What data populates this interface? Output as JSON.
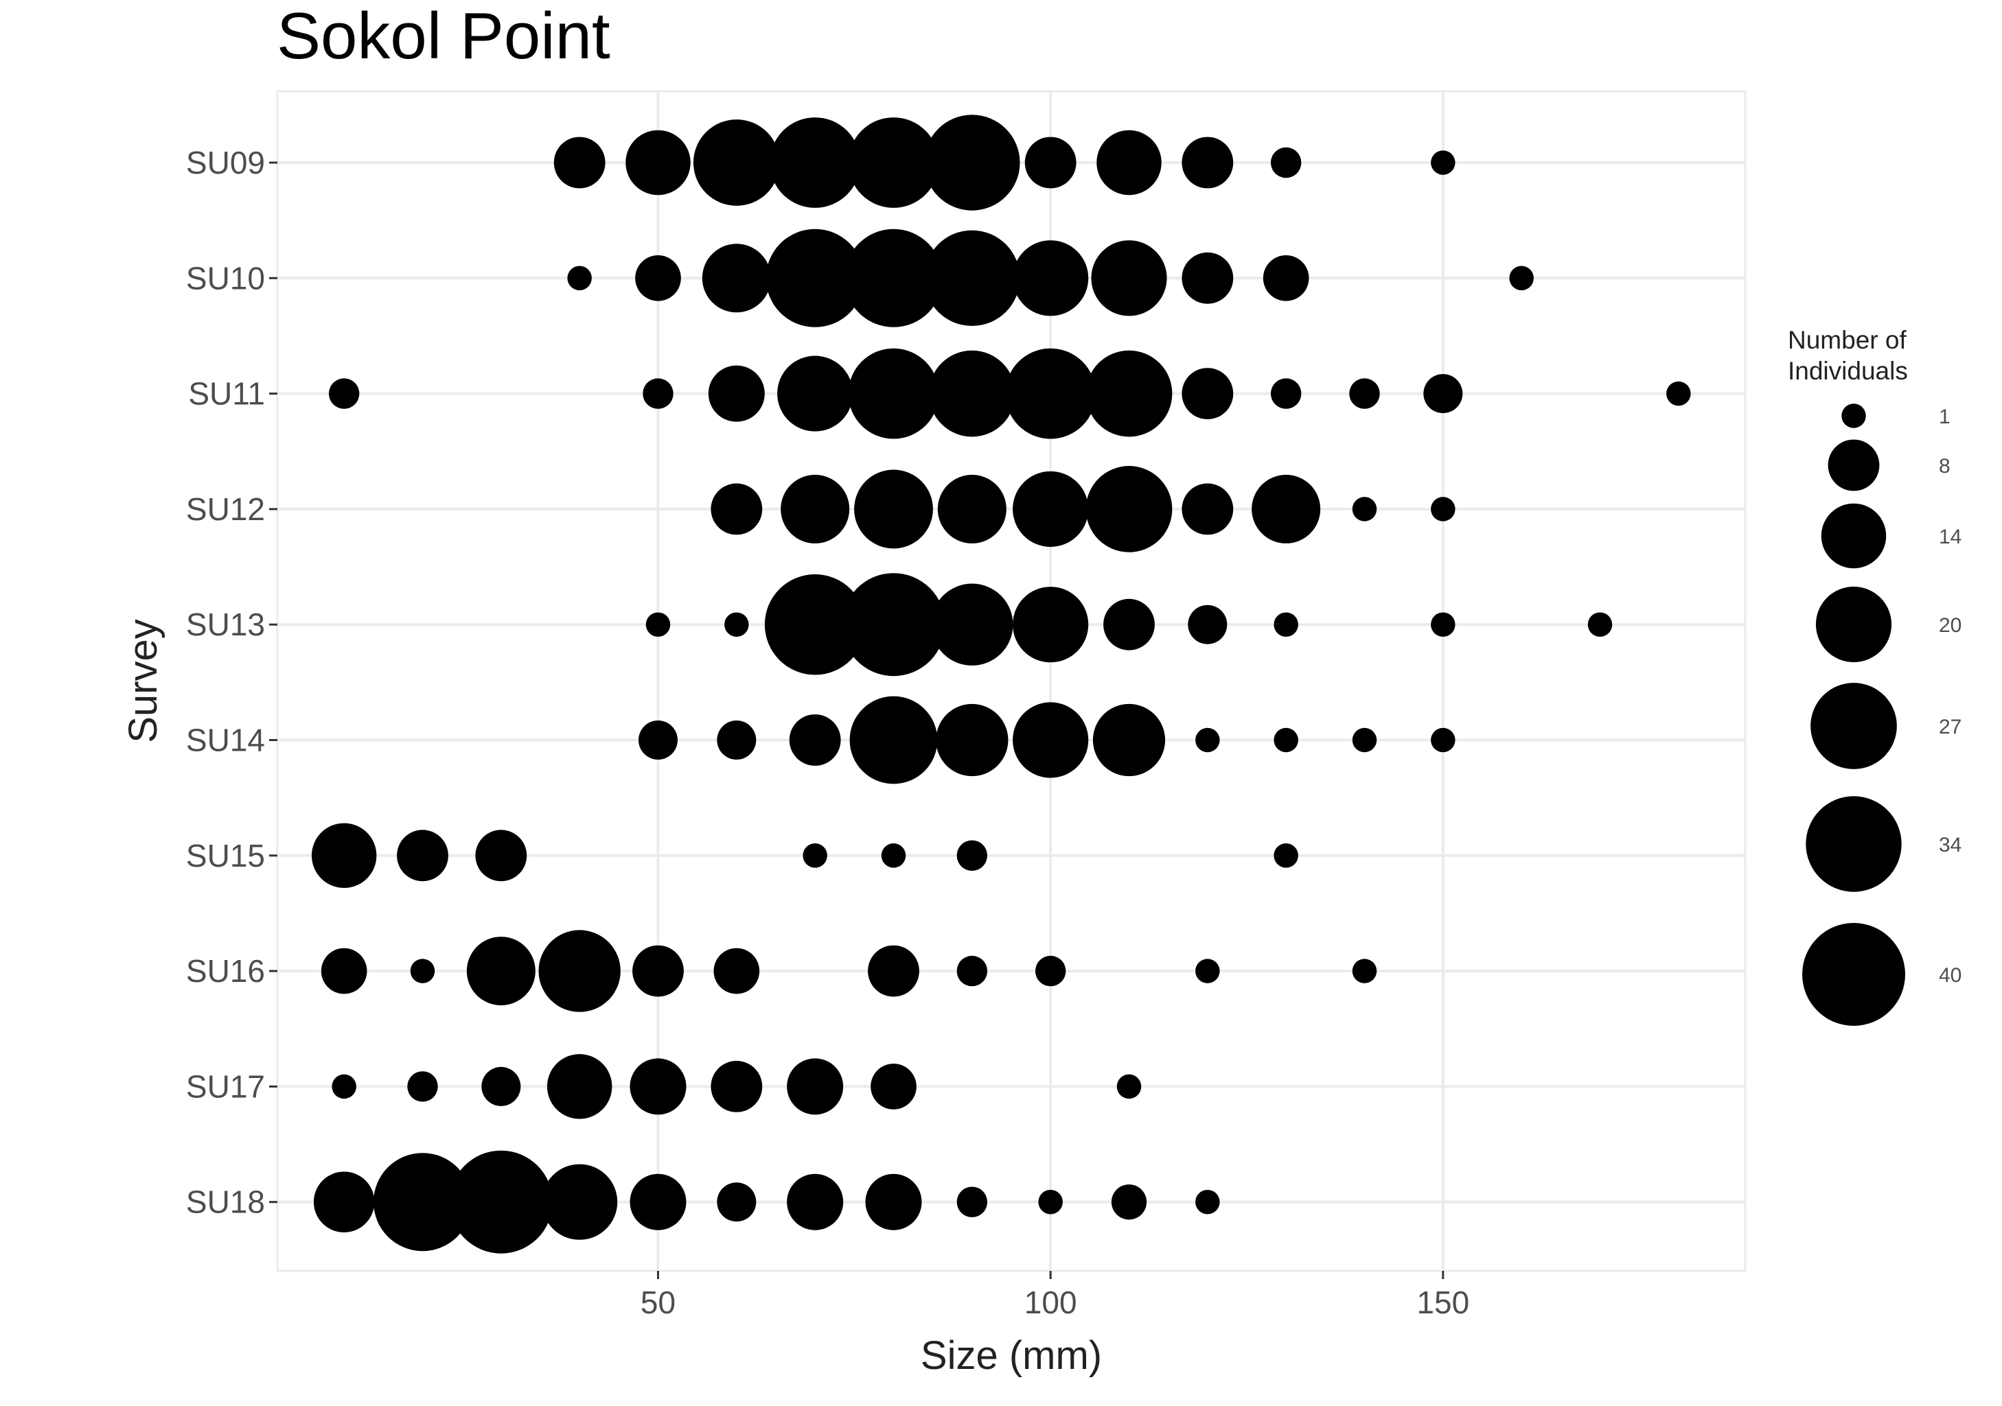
{
  "chart_data": {
    "type": "scatter",
    "title": "Sokol Point",
    "xlabel": "Size (mm)",
    "ylabel": "Survey",
    "x_ticks": [
      50,
      100,
      150
    ],
    "xlim": [
      1.5,
      188.5
    ],
    "categories": [
      "SU09",
      "SU10",
      "SU11",
      "SU12",
      "SU13",
      "SU14",
      "SU15",
      "SU16",
      "SU17",
      "SU18"
    ],
    "grid": true,
    "marker_color": "#000000",
    "size_legend": {
      "title_lines": [
        "Number of",
        "Individuals"
      ],
      "position": "right",
      "values": [
        1,
        8,
        14,
        20,
        27,
        34,
        40
      ]
    },
    "series": [
      {
        "category": "SU09",
        "points": [
          [
            40,
            8
          ],
          [
            50,
            14
          ],
          [
            60,
            27
          ],
          [
            70,
            30
          ],
          [
            80,
            30
          ],
          [
            90,
            34
          ],
          [
            100,
            8
          ],
          [
            110,
            14
          ],
          [
            120,
            8
          ],
          [
            130,
            2
          ],
          [
            150,
            1
          ]
        ]
      },
      {
        "category": "SU10",
        "points": [
          [
            40,
            1
          ],
          [
            50,
            6
          ],
          [
            60,
            16
          ],
          [
            70,
            36
          ],
          [
            80,
            36
          ],
          [
            90,
            34
          ],
          [
            100,
            20
          ],
          [
            110,
            20
          ],
          [
            120,
            8
          ],
          [
            130,
            6
          ],
          [
            160,
            1
          ]
        ]
      },
      {
        "category": "SU11",
        "points": [
          [
            10,
            2
          ],
          [
            50,
            2
          ],
          [
            60,
            10
          ],
          [
            70,
            20
          ],
          [
            80,
            30
          ],
          [
            90,
            27
          ],
          [
            100,
            30
          ],
          [
            110,
            27
          ],
          [
            120,
            8
          ],
          [
            130,
            2
          ],
          [
            140,
            2
          ],
          [
            150,
            4
          ],
          [
            180,
            1
          ]
        ]
      },
      {
        "category": "SU12",
        "points": [
          [
            60,
            8
          ],
          [
            70,
            16
          ],
          [
            80,
            22
          ],
          [
            90,
            16
          ],
          [
            100,
            20
          ],
          [
            110,
            27
          ],
          [
            120,
            8
          ],
          [
            130,
            16
          ],
          [
            140,
            1
          ],
          [
            150,
            1
          ]
        ]
      },
      {
        "category": "SU13",
        "points": [
          [
            50,
            1
          ],
          [
            60,
            1
          ],
          [
            70,
            38
          ],
          [
            80,
            40
          ],
          [
            90,
            24
          ],
          [
            100,
            20
          ],
          [
            110,
            8
          ],
          [
            120,
            4
          ],
          [
            130,
            1
          ],
          [
            150,
            1
          ],
          [
            170,
            1
          ]
        ]
      },
      {
        "category": "SU14",
        "points": [
          [
            50,
            4
          ],
          [
            60,
            4
          ],
          [
            70,
            8
          ],
          [
            80,
            28
          ],
          [
            90,
            18
          ],
          [
            100,
            20
          ],
          [
            110,
            18
          ],
          [
            120,
            1
          ],
          [
            130,
            1
          ],
          [
            140,
            1
          ],
          [
            150,
            1
          ]
        ]
      },
      {
        "category": "SU15",
        "points": [
          [
            10,
            14
          ],
          [
            20,
            8
          ],
          [
            30,
            8
          ],
          [
            70,
            1
          ],
          [
            80,
            1
          ],
          [
            90,
            2
          ],
          [
            130,
            1
          ]
        ]
      },
      {
        "category": "SU16",
        "points": [
          [
            10,
            6
          ],
          [
            20,
            1
          ],
          [
            30,
            16
          ],
          [
            40,
            24
          ],
          [
            50,
            8
          ],
          [
            60,
            6
          ],
          [
            80,
            8
          ],
          [
            90,
            2
          ],
          [
            100,
            2
          ],
          [
            120,
            1
          ],
          [
            140,
            1
          ]
        ]
      },
      {
        "category": "SU17",
        "points": [
          [
            10,
            1
          ],
          [
            20,
            2
          ],
          [
            30,
            4
          ],
          [
            40,
            14
          ],
          [
            50,
            10
          ],
          [
            60,
            8
          ],
          [
            70,
            10
          ],
          [
            80,
            6
          ],
          [
            110,
            1
          ]
        ]
      },
      {
        "category": "SU18",
        "points": [
          [
            10,
            12
          ],
          [
            20,
            36
          ],
          [
            30,
            40
          ],
          [
            40,
            20
          ],
          [
            50,
            10
          ],
          [
            60,
            4
          ],
          [
            70,
            10
          ],
          [
            80,
            10
          ],
          [
            90,
            2
          ],
          [
            100,
            1
          ],
          [
            110,
            3
          ],
          [
            120,
            1
          ]
        ]
      }
    ]
  }
}
